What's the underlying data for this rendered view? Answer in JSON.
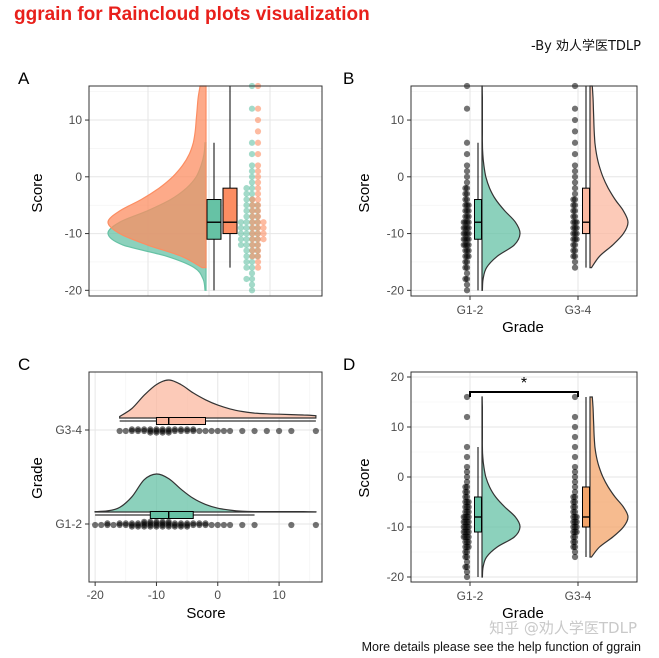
{
  "title": "ggrain for Raincloud plots visualization",
  "byline": "-By 劝人学医TDLP",
  "footnote": "More details please see the help function of ggrain",
  "watermark": "知乎 @劝人学医TDLP",
  "colors": {
    "title": "#e8201b",
    "g12_fill": "#66c2a5",
    "g34_fill": "#fc8d62",
    "g34_light": "#fbb8a0",
    "g34_D": "#f3a46a",
    "outline": "#333333"
  },
  "chart_data": [
    {
      "panel": "A",
      "type": "raincloud",
      "orientation": "vertical",
      "xlabel": "",
      "ylabel": "Score",
      "ylim": [
        -21,
        16
      ],
      "yticks": [
        -20,
        -10,
        0,
        10
      ],
      "groups": [
        {
          "name": "G1-2",
          "min": -20,
          "q1": -11,
          "median": -8,
          "q3": -4,
          "max": 6,
          "density_y": [
            -20,
            -18,
            -16,
            -14,
            -12,
            -10,
            -8,
            -6,
            -4,
            -2,
            0,
            2,
            4,
            6
          ],
          "density": [
            0.01,
            0.03,
            0.12,
            0.4,
            0.85,
            1.0,
            0.88,
            0.6,
            0.36,
            0.2,
            0.1,
            0.05,
            0.02,
            0.01
          ]
        },
        {
          "name": "G3-4",
          "min": -16,
          "q1": -10,
          "median": -8,
          "q3": -2,
          "max": 16,
          "density_y": [
            -16,
            -14,
            -12,
            -10,
            -8,
            -6,
            -4,
            -2,
            0,
            2,
            4,
            6,
            8,
            10,
            12,
            14,
            16
          ],
          "density": [
            0.04,
            0.25,
            0.6,
            0.88,
            1.0,
            0.88,
            0.66,
            0.48,
            0.34,
            0.24,
            0.17,
            0.13,
            0.11,
            0.1,
            0.09,
            0.08,
            0.06
          ]
        }
      ]
    },
    {
      "panel": "B",
      "type": "raincloud",
      "orientation": "vertical",
      "xlabel": "Grade",
      "ylabel": "Score",
      "categories": [
        "G1-2",
        "G3-4"
      ],
      "ylim": [
        -21,
        16
      ],
      "yticks": [
        -20,
        -10,
        0,
        10
      ],
      "groups": [
        {
          "name": "G1-2",
          "min": -20,
          "q1": -11,
          "median": -8,
          "q3": -4,
          "max": 6,
          "density_y": [
            -20,
            -18,
            -16,
            -14,
            -12,
            -10,
            -8,
            -6,
            -4,
            -2,
            0,
            2,
            4,
            6,
            8,
            10,
            12,
            14,
            16
          ],
          "density": [
            0.01,
            0.03,
            0.12,
            0.4,
            0.85,
            1.0,
            0.88,
            0.6,
            0.36,
            0.2,
            0.1,
            0.05,
            0.02,
            0.01,
            0.01,
            0.01,
            0.01,
            0.01,
            0.005
          ]
        },
        {
          "name": "G3-4",
          "min": -16,
          "q1": -10,
          "median": -8,
          "q3": -2,
          "max": 16,
          "density_y": [
            -16,
            -14,
            -12,
            -10,
            -8,
            -6,
            -4,
            -2,
            0,
            2,
            4,
            6,
            8,
            10,
            12,
            14,
            16
          ],
          "density": [
            0.04,
            0.25,
            0.6,
            0.88,
            1.0,
            0.88,
            0.66,
            0.48,
            0.34,
            0.24,
            0.17,
            0.13,
            0.11,
            0.1,
            0.09,
            0.08,
            0.06
          ]
        }
      ]
    },
    {
      "panel": "C",
      "type": "raincloud",
      "orientation": "horizontal",
      "xlabel": "Score",
      "ylabel": "Grade",
      "categories": [
        "G1-2",
        "G3-4"
      ],
      "xlim": [
        -21,
        17
      ],
      "xticks": [
        -20,
        -10,
        0,
        10
      ],
      "groups": [
        {
          "name": "G1-2",
          "min": -20,
          "q1": -11,
          "median": -8,
          "q3": -4,
          "max": 6,
          "density_x": [
            -20,
            -18,
            -16,
            -14,
            -12,
            -10,
            -8,
            -6,
            -4,
            -2,
            0,
            2,
            4,
            6,
            8,
            10,
            12,
            14,
            16
          ],
          "density": [
            0.01,
            0.03,
            0.12,
            0.4,
            0.85,
            1.0,
            0.88,
            0.6,
            0.36,
            0.2,
            0.1,
            0.05,
            0.02,
            0.01,
            0.01,
            0.01,
            0.01,
            0.01,
            0.005
          ]
        },
        {
          "name": "G3-4",
          "min": -16,
          "q1": -10,
          "median": -8,
          "q3": -2,
          "max": 16,
          "density_x": [
            -16,
            -14,
            -12,
            -10,
            -8,
            -6,
            -4,
            -2,
            0,
            2,
            4,
            6,
            8,
            10,
            12,
            14,
            16
          ],
          "density": [
            0.04,
            0.25,
            0.6,
            0.88,
            1.0,
            0.88,
            0.66,
            0.48,
            0.34,
            0.24,
            0.17,
            0.13,
            0.11,
            0.1,
            0.09,
            0.08,
            0.06
          ]
        }
      ]
    },
    {
      "panel": "D",
      "type": "raincloud",
      "orientation": "vertical",
      "xlabel": "Grade",
      "ylabel": "Score",
      "categories": [
        "G1-2",
        "G3-4"
      ],
      "ylim": [
        -21,
        21
      ],
      "yticks": [
        -20,
        -10,
        0,
        10,
        20
      ],
      "significance": {
        "label": "*",
        "y": 17,
        "between": [
          "G1-2",
          "G3-4"
        ]
      },
      "groups": [
        {
          "name": "G1-2",
          "min": -20,
          "q1": -11,
          "median": -8,
          "q3": -4,
          "max": 6,
          "density_y": [
            -20,
            -18,
            -16,
            -14,
            -12,
            -10,
            -8,
            -6,
            -4,
            -2,
            0,
            2,
            4,
            6,
            8,
            10,
            12,
            14,
            16
          ],
          "density": [
            0.01,
            0.03,
            0.12,
            0.4,
            0.85,
            1.0,
            0.88,
            0.6,
            0.36,
            0.2,
            0.1,
            0.05,
            0.02,
            0.01,
            0.01,
            0.01,
            0.01,
            0.01,
            0.005
          ]
        },
        {
          "name": "G3-4",
          "min": -16,
          "q1": -10,
          "median": -8,
          "q3": -2,
          "max": 16,
          "density_y": [
            -16,
            -14,
            -12,
            -10,
            -8,
            -6,
            -4,
            -2,
            0,
            2,
            4,
            6,
            8,
            10,
            12,
            14,
            16
          ],
          "density": [
            0.04,
            0.25,
            0.6,
            0.88,
            1.0,
            0.88,
            0.66,
            0.48,
            0.34,
            0.24,
            0.17,
            0.13,
            0.11,
            0.1,
            0.09,
            0.08,
            0.06
          ]
        }
      ]
    }
  ],
  "rain_points": {
    "G1-2": {
      "values": [
        -20,
        -19,
        -18,
        -18,
        -17,
        -16,
        -16,
        -15,
        -15,
        -14,
        -14,
        -14,
        -13,
        -13,
        -13,
        -12,
        -12,
        -12,
        -12,
        -11,
        -11,
        -11,
        -11,
        -10,
        -10,
        -10,
        -10,
        -9,
        -9,
        -9,
        -9,
        -8,
        -8,
        -8,
        -8,
        -7,
        -7,
        -7,
        -6,
        -6,
        -6,
        -5,
        -5,
        -5,
        -4,
        -4,
        -3,
        -3,
        -2,
        -2,
        -1,
        0,
        1,
        2,
        4,
        6,
        12,
        16
      ]
    },
    "G3-4": {
      "values": [
        -16,
        -15,
        -14,
        -14,
        -13,
        -13,
        -12,
        -12,
        -11,
        -11,
        -11,
        -10,
        -10,
        -10,
        -9,
        -9,
        -9,
        -8,
        -8,
        -8,
        -7,
        -7,
        -6,
        -6,
        -5,
        -5,
        -4,
        -4,
        -3,
        -2,
        -1,
        0,
        1,
        2,
        4,
        6,
        8,
        10,
        12,
        16
      ]
    }
  },
  "panel_labels": [
    "A",
    "B",
    "C",
    "D"
  ]
}
